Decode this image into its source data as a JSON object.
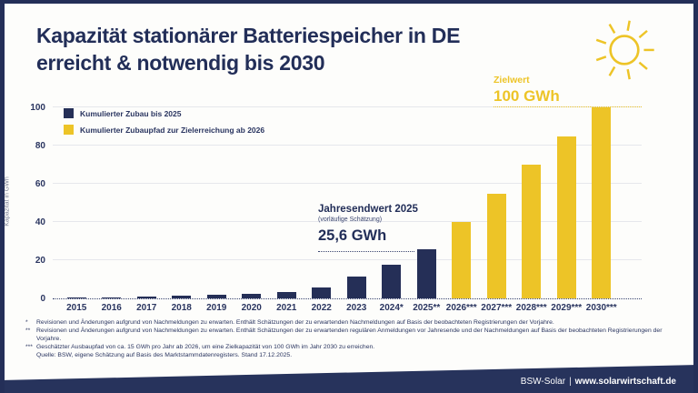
{
  "slide": {
    "title_line1": "Kapazität stationärer Batteriespeicher in DE",
    "title_line2": "erreicht & notwendig bis 2030"
  },
  "colors": {
    "navy": "#252f57",
    "yellow": "#edc427",
    "gridline": "#e6e7ec",
    "background": "#fdfdfb",
    "footer_band": "#27335c"
  },
  "target": {
    "label": "Zielwert",
    "value": "100 GWh"
  },
  "annotation": {
    "title": "Jahresendwert 2025",
    "subtitle": "(vorläufige Schätzung)",
    "value": "25,6 GWh"
  },
  "legend": {
    "items": [
      {
        "label": "Kumulierter Zubau bis 2025",
        "color": "#252f57"
      },
      {
        "label": "Kumulierter Zubaupfad zur Zielerreichung ab 2026",
        "color": "#edc427"
      }
    ]
  },
  "chart_data": {
    "type": "bar",
    "title": "Kapazität stationärer Batteriespeicher in DE erreicht & notwendig bis 2030",
    "xlabel": "",
    "ylabel": "Kapazität in GWh",
    "units": "GWh",
    "ylim": [
      0,
      100
    ],
    "y_ticks": [
      0,
      20,
      40,
      60,
      80,
      100
    ],
    "grid": "horizontal",
    "legend_position": "top-left",
    "categories": [
      "2015",
      "2016",
      "2017",
      "2018",
      "2019",
      "2020",
      "2021",
      "2022",
      "2023",
      "2024*",
      "2025**",
      "2026***",
      "2027***",
      "2028***",
      "2029***",
      "2030***"
    ],
    "values": [
      0.4,
      0.6,
      0.9,
      1.3,
      1.8,
      2.5,
      3.5,
      5.9,
      11.2,
      17.7,
      25.6,
      40,
      55,
      70,
      85,
      100
    ],
    "series": [
      {
        "name": "Kumulierter Zubau bis 2025",
        "color": "#252f57",
        "last_category": "2025**"
      },
      {
        "name": "Kumulierter Zubaupfad zur Zielerreichung ab 2026",
        "color": "#edc427",
        "last_category": "2030***"
      }
    ],
    "target_line": {
      "value": 100,
      "label": "Zielwert 100 GWh",
      "color": "#edc427"
    }
  },
  "footnotes": [
    {
      "marker": "*",
      "text": "Revisionen und Änderungen aufgrund von Nachmeldungen zu erwarten. Enthält Schätzungen der zu erwartenden Nachmeldungen auf Basis der beobachteten Registrierungen der Vorjahre."
    },
    {
      "marker": "**",
      "text": "Revisionen und Änderungen aufgrund von Nachmeldungen zu erwarten. Enthält Schätzungen der zu erwartenden regulären Anmeldungen vor Jahresende und der Nachmeldungen auf Basis der beobachteten Registrierungen der Vorjahre."
    },
    {
      "marker": "***",
      "text": "Geschätzter Ausbaupfad von ca. 15 GWh pro Jahr ab 2026, um eine Zielkapazität von 100 GWh im Jahr 2030 zu erreichen."
    },
    {
      "marker": "",
      "text": "Quelle: BSW, eigene Schätzung auf Basis des Marktstammdatenregisters. Stand 17.12.2025."
    }
  ],
  "footer": {
    "brand": "BSW-Solar",
    "separator": "|",
    "site": "www.solarwirtschaft.de"
  }
}
